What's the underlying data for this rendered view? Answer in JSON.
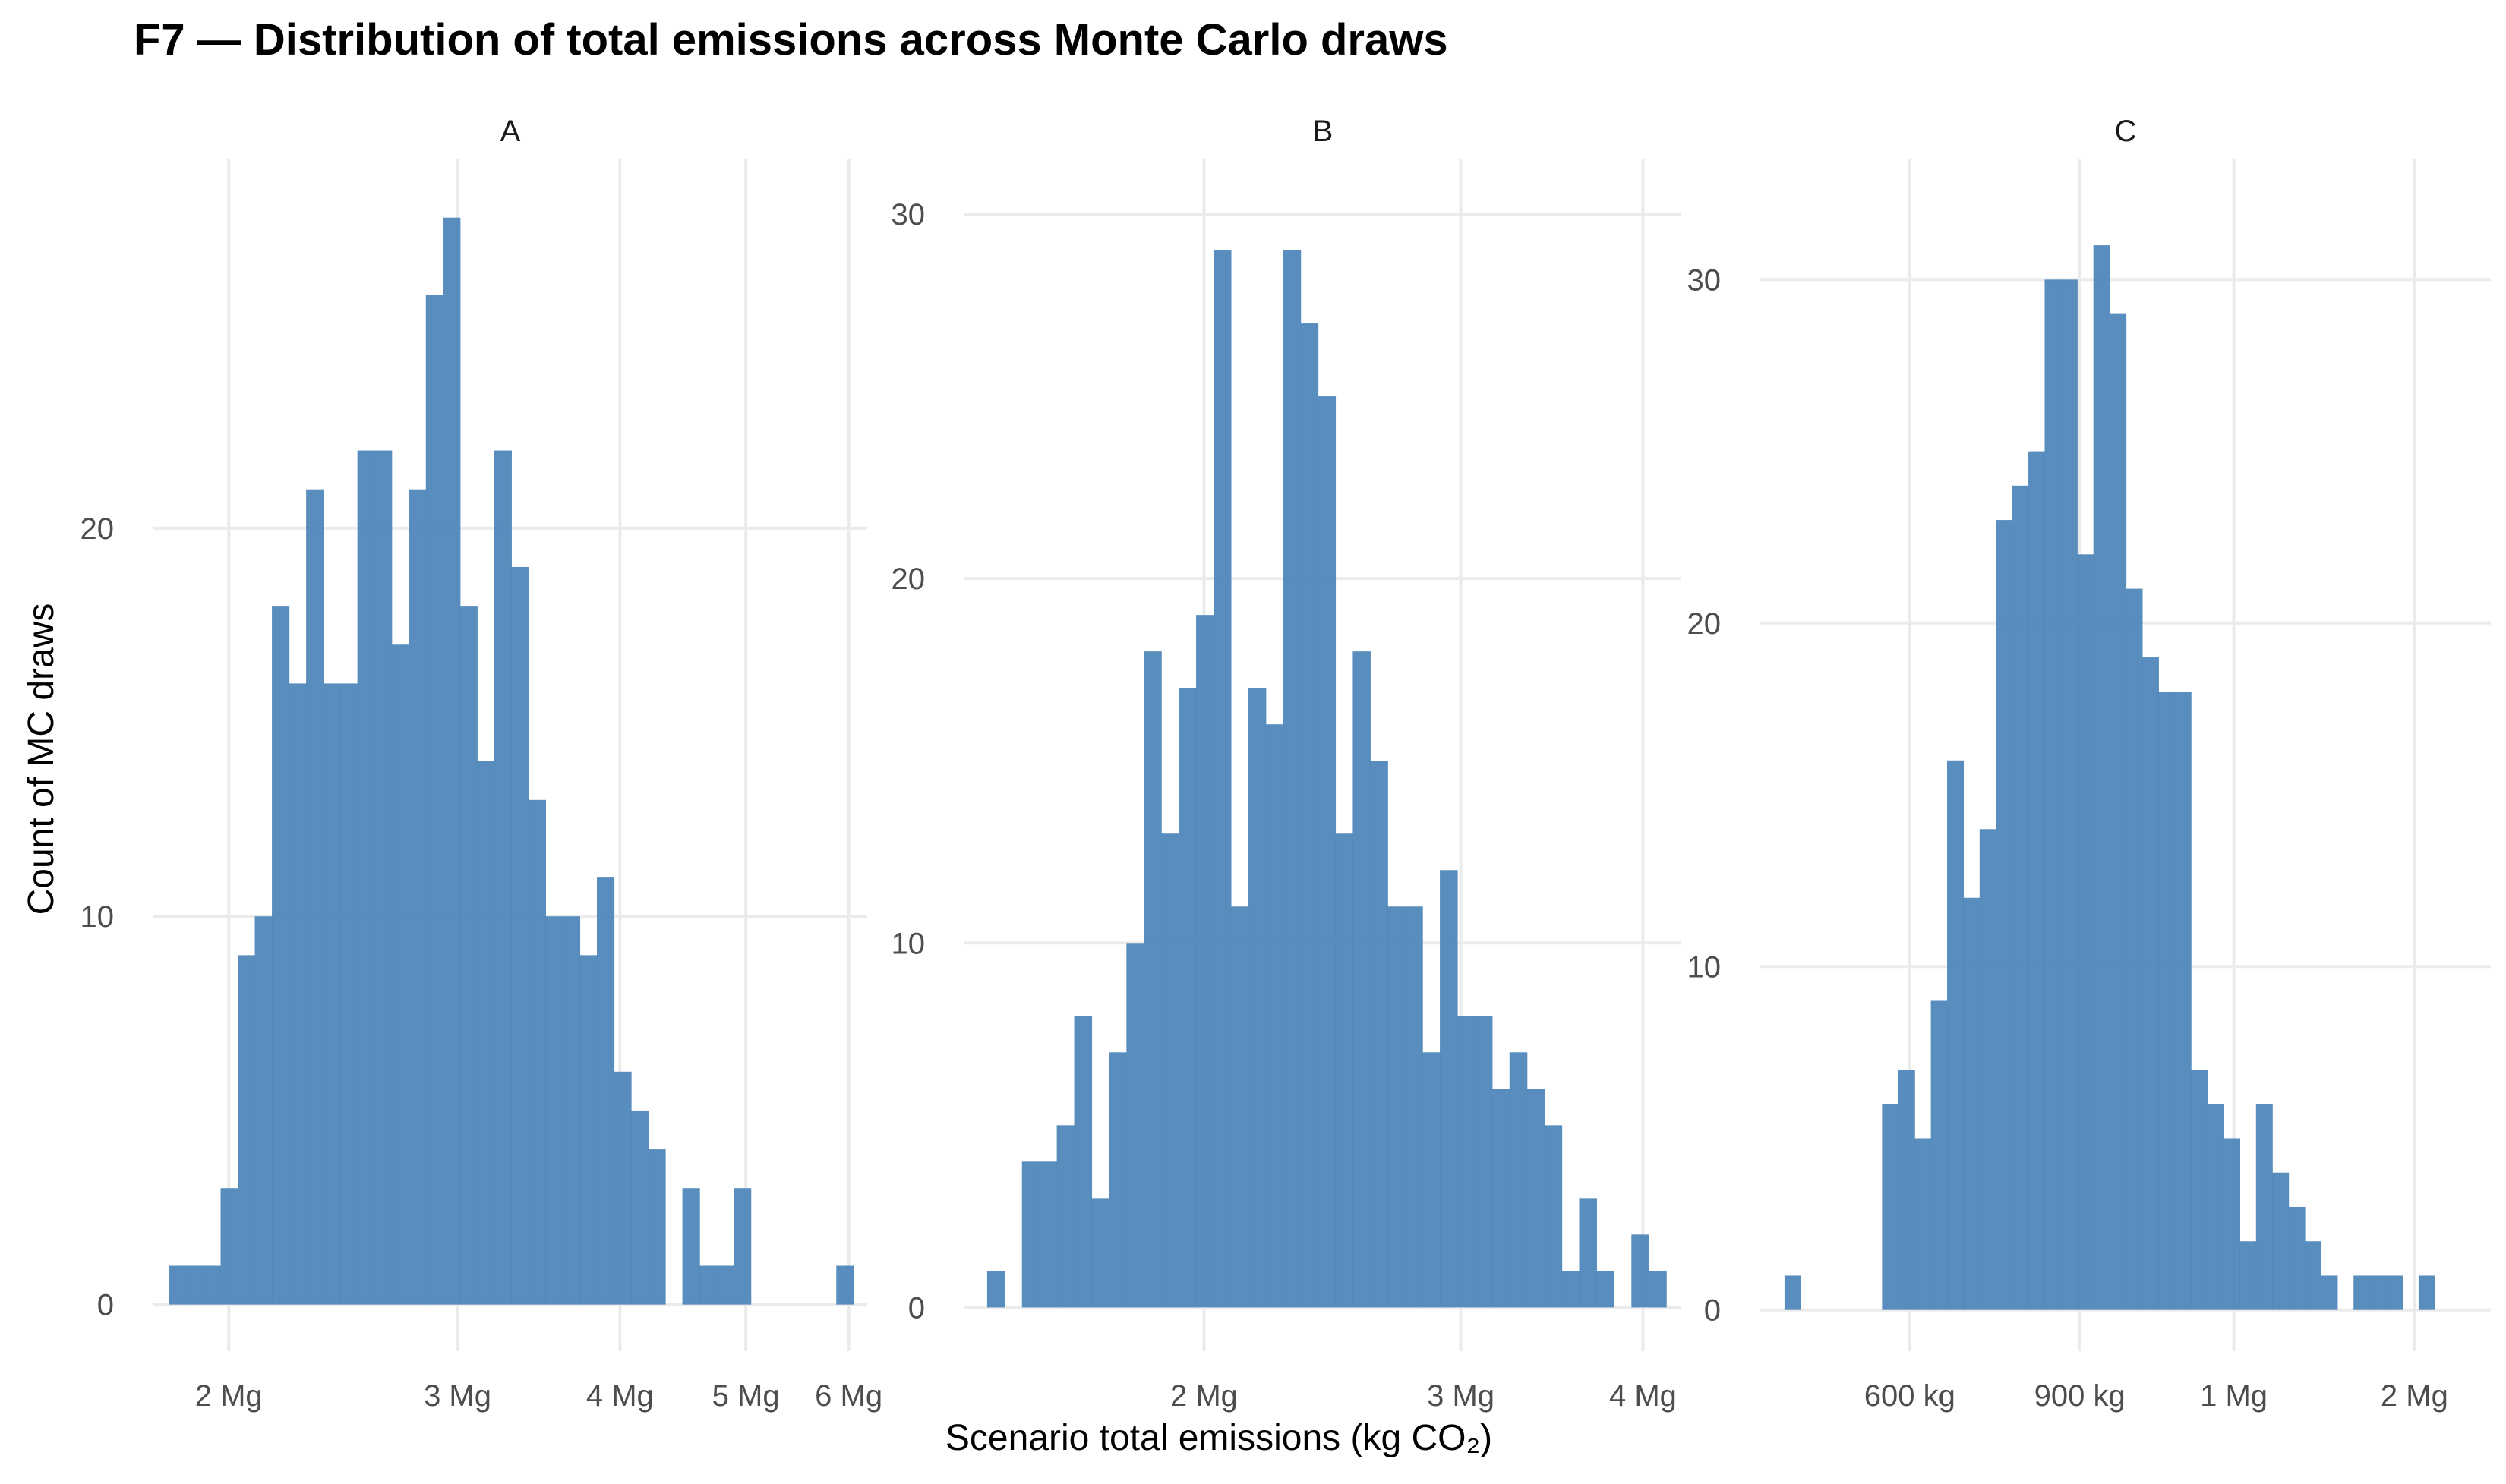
{
  "title": "F7 — Distribution of total emissions across Monte Carlo draws",
  "xlabel": "Scenario total emissions (kg CO₂)",
  "ylabel": "Count of MC draws",
  "bar_color": "#4f87bb",
  "grid_color": "#ebebeb",
  "chart_data": [
    {
      "type": "bar",
      "panel": "A",
      "x_scale": "log",
      "xlim": [
        1750000.0,
        6200000.0
      ],
      "ylim": [
        -1.2,
        29.5
      ],
      "x_ticks": [
        {
          "value": 2000000.0,
          "label": "2 Mg"
        },
        {
          "value": 3000000.0,
          "label": "3 Mg"
        },
        {
          "value": 4000000.0,
          "label": "4 Mg"
        },
        {
          "value": 5000000.0,
          "label": "5 Mg"
        },
        {
          "value": 6000000.0,
          "label": "6 Mg"
        }
      ],
      "y_ticks": [
        {
          "value": 0,
          "label": "0"
        },
        {
          "value": 10,
          "label": "10"
        },
        {
          "value": 20,
          "label": "20"
        }
      ],
      "bins_start": 1800000.0,
      "bins_end": 6050000.0,
      "counts": [
        1,
        1,
        1,
        3,
        9,
        10,
        18,
        16,
        21,
        16,
        16,
        22,
        22,
        17,
        21,
        26,
        28,
        18,
        14,
        22,
        19,
        13,
        10,
        10,
        9,
        11,
        6,
        5,
        4,
        0,
        3,
        1,
        1,
        3,
        0,
        0,
        0,
        0,
        0,
        1
      ]
    },
    {
      "type": "bar",
      "panel": "B",
      "x_scale": "log",
      "xlim": [
        1370000.0,
        4250000.0
      ],
      "ylim": [
        -1.2,
        31.5
      ],
      "x_ticks": [
        {
          "value": 2000000.0,
          "label": "2 Mg"
        },
        {
          "value": 3000000.0,
          "label": "3 Mg"
        },
        {
          "value": 4000000.0,
          "label": "4 Mg"
        }
      ],
      "y_ticks": [
        {
          "value": 0,
          "label": "0"
        },
        {
          "value": 10,
          "label": "10"
        },
        {
          "value": 20,
          "label": "20"
        },
        {
          "value": 30,
          "label": "30"
        }
      ],
      "bins_start": 1420000.0,
      "bins_end": 4150000.0,
      "counts": [
        1,
        0,
        4,
        4,
        5,
        8,
        3,
        7,
        10,
        18,
        13,
        17,
        19,
        29,
        11,
        17,
        16,
        29,
        27,
        25,
        13,
        18,
        15,
        11,
        11,
        7,
        12,
        8,
        8,
        6,
        7,
        6,
        5,
        1,
        3,
        1,
        0,
        2,
        1
      ]
    },
    {
      "type": "bar",
      "panel": "C",
      "x_scale": "log",
      "xlim": [
        420000.0,
        2400000.0
      ],
      "ylim": [
        -1.2,
        33.5
      ],
      "x_ticks": [
        {
          "value": 600000.0,
          "label": "600 kg"
        },
        {
          "value": 900000.0,
          "label": "900 kg"
        },
        {
          "value": 1300000.0,
          "label": "1 Mg"
        },
        {
          "value": 2000000.0,
          "label": "2 Mg"
        }
      ],
      "y_ticks": [
        {
          "value": 0,
          "label": "0"
        },
        {
          "value": 10,
          "label": "10"
        },
        {
          "value": 20,
          "label": "20"
        },
        {
          "value": 30,
          "label": "30"
        }
      ],
      "bins_start": 445000.0,
      "bins_end": 2100000.0,
      "counts": [
        1,
        0,
        0,
        0,
        0,
        0,
        6,
        7,
        5,
        9,
        16,
        12,
        14,
        23,
        24,
        25,
        30,
        30,
        22,
        31,
        29,
        21,
        19,
        18,
        18,
        7,
        6,
        5,
        2,
        6,
        4,
        3,
        2,
        1,
        0,
        1,
        1,
        1,
        0,
        1
      ]
    }
  ]
}
